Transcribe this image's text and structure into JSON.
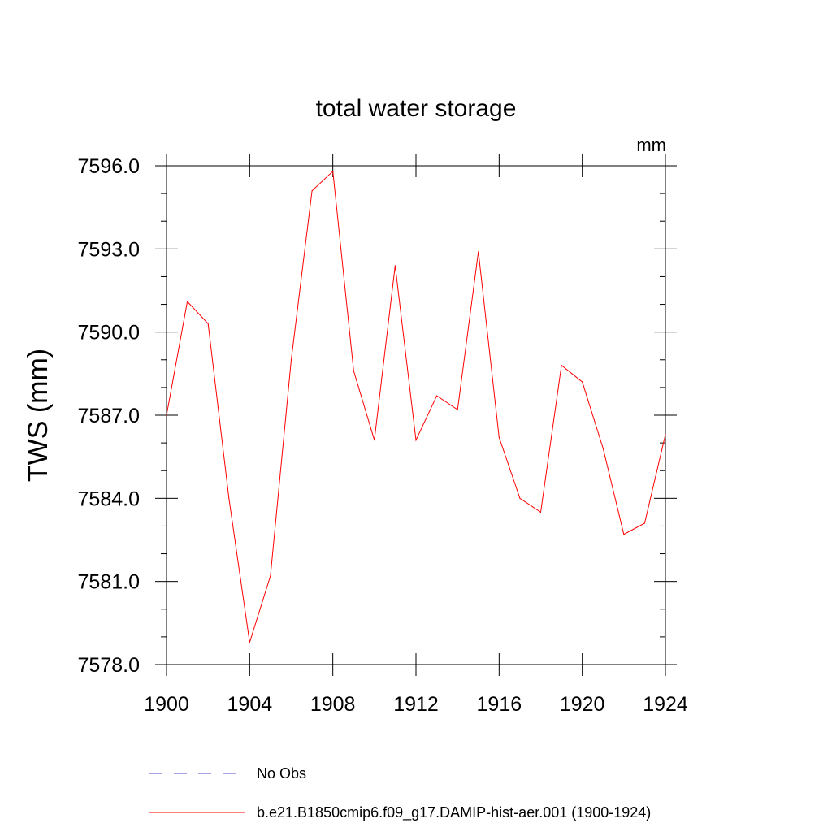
{
  "chart_data": {
    "type": "line",
    "title": "total water storage",
    "units_label": "mm",
    "ylabel": "TWS  (mm)",
    "xlabel": "",
    "xlim": [
      1900,
      1924
    ],
    "ylim": [
      7578.0,
      7596.0
    ],
    "x_ticks": [
      "1900",
      "1904",
      "1908",
      "1912",
      "1916",
      "1920",
      "1924"
    ],
    "y_ticks": [
      "7578.0",
      "7581.0",
      "7584.0",
      "7587.0",
      "7590.0",
      "7593.0",
      "7596.0"
    ],
    "grid": false,
    "legend_placement": "bottom",
    "series": [
      {
        "name": "b.e21.B1850cmip6.f09_g17.DAMIP-hist-aer.001 (1900-1924)",
        "color": "#ff0000",
        "style": "solid",
        "x": [
          1900,
          1901,
          1902,
          1903,
          1904,
          1905,
          1906,
          1907,
          1908,
          1909,
          1910,
          1911,
          1912,
          1913,
          1914,
          1915,
          1916,
          1917,
          1918,
          1919,
          1920,
          1921,
          1922,
          1923,
          1924
        ],
        "values": [
          7587.0,
          7591.1,
          7590.3,
          7584.0,
          7578.8,
          7581.2,
          7589.0,
          7595.1,
          7595.8,
          7588.6,
          7586.1,
          7592.4,
          7586.1,
          7587.7,
          7587.2,
          7592.9,
          7586.2,
          7584.0,
          7583.5,
          7588.8,
          7588.2,
          7585.8,
          7582.7,
          7583.1,
          7586.3
        ]
      }
    ],
    "legend": [
      {
        "label": "No Obs",
        "color": "#4b4bd0",
        "style": "dashed"
      },
      {
        "label": "b.e21.B1850cmip6.f09_g17.DAMIP-hist-aer.001 (1900-1924)",
        "color": "#ff0000",
        "style": "solid"
      }
    ]
  }
}
